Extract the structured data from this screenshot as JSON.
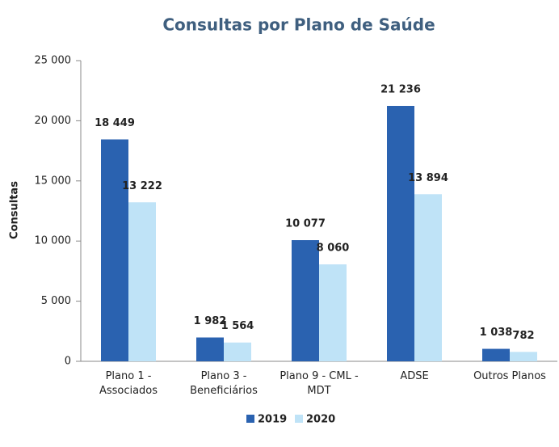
{
  "chart_data": {
    "type": "bar",
    "title": "Consultas por Plano de Saúde",
    "y_label": "Consultas",
    "categories": [
      "Plano 1 - Associados",
      "Plano 3 - Beneficiários",
      "Plano 9 - CML - MDT",
      "ADSE",
      "Outros Planos"
    ],
    "series": [
      {
        "name": "2019",
        "color": "#2a62b0",
        "values": [
          18449,
          1982,
          10077,
          21236,
          1038
        ],
        "value_labels": [
          "18 449",
          "1 982",
          "10 077",
          "21 236",
          "1 038"
        ]
      },
      {
        "name": "2020",
        "color": "#bfe3f7",
        "values": [
          13222,
          1564,
          8060,
          13894,
          782
        ],
        "value_labels": [
          "13 222",
          "1 564",
          "8 060",
          "13 894",
          "782"
        ]
      }
    ],
    "ylim": [
      0,
      25000
    ],
    "yticks": [
      {
        "value": 0,
        "label": "0"
      },
      {
        "value": 5000,
        "label": "5 000"
      },
      {
        "value": 10000,
        "label": "10 000"
      },
      {
        "value": 15000,
        "label": "15 000"
      },
      {
        "value": 20000,
        "label": "20 000"
      },
      {
        "value": 25000,
        "label": "25 000"
      }
    ],
    "grid": false,
    "legend": "bottom"
  }
}
